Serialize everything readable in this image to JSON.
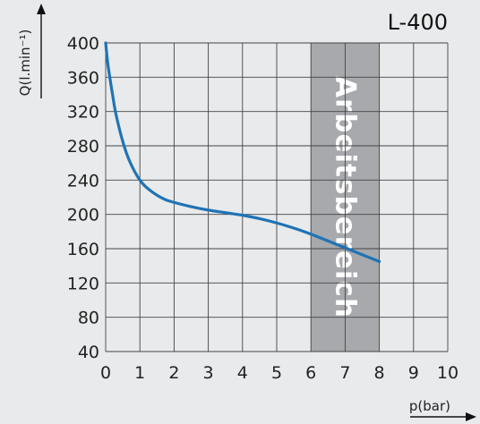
{
  "chart_data": {
    "type": "line",
    "title": "L-400",
    "xlabel": "p(bar)",
    "ylabel": "Q(l.min⁻¹)",
    "xlim": [
      0,
      10
    ],
    "ylim": [
      40,
      400
    ],
    "xticks": [
      0,
      1,
      2,
      3,
      4,
      5,
      6,
      7,
      8,
      9,
      10
    ],
    "yticks": [
      40,
      80,
      120,
      160,
      200,
      240,
      280,
      320,
      360,
      400
    ],
    "grid": true,
    "band": {
      "label": "Arbeitsbereich",
      "x_from": 6,
      "x_to": 8,
      "color": "#a7a9ac"
    },
    "line_color": "#1f73b6",
    "series": [
      {
        "x": [
          0,
          0.05,
          0.1,
          0.2,
          0.3,
          0.5,
          0.7,
          1.0,
          1.3,
          1.7,
          2.0,
          2.5,
          3.0,
          3.5,
          4.0,
          4.5,
          5.0,
          5.5,
          6.0,
          6.5,
          7.0,
          7.5,
          8.0
        ],
        "y": [
          400,
          380,
          365,
          340,
          317,
          285,
          262,
          240,
          228,
          218,
          214,
          209,
          205,
          202,
          199,
          195,
          190,
          184,
          177,
          169,
          161,
          153,
          145
        ]
      }
    ]
  }
}
